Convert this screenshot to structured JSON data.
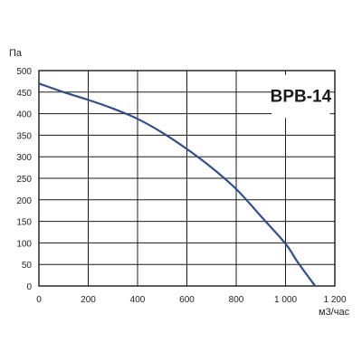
{
  "chart_data": {
    "type": "line",
    "title": "BPB-14",
    "xlabel": "м3/час",
    "ylabel": "Па",
    "xlim": [
      0,
      1200
    ],
    "ylim": [
      0,
      500
    ],
    "x_ticks": [
      "0",
      "200",
      "400",
      "600",
      "800",
      "1 000",
      "1 200"
    ],
    "y_ticks": [
      "0",
      "50",
      "100",
      "150",
      "200",
      "250",
      "300",
      "350",
      "400",
      "450",
      "500"
    ],
    "grid": true,
    "legend": "none",
    "series": [
      {
        "x": [
          0,
          100,
          200,
          300,
          400,
          500,
          600,
          700,
          800,
          900,
          1000,
          1050,
          1120
        ],
        "y": [
          470,
          450,
          432,
          412,
          388,
          356,
          318,
          275,
          225,
          162,
          98,
          55,
          0
        ]
      }
    ],
    "colors": {
      "line": "#2f4e8f",
      "grid": "#1a1a1a",
      "text": "#222222"
    }
  }
}
